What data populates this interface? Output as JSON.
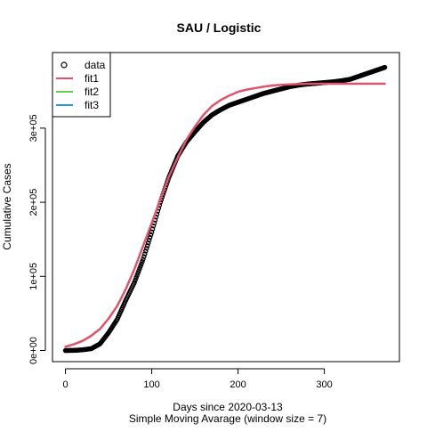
{
  "chart_data": {
    "type": "line",
    "title": "SAU / Logistic",
    "xlabel": "Days since 2020-03-13",
    "xlabel_sub": "Simple Moving Avarage (window size = 7)",
    "ylabel": "Cumulative Cases",
    "xlim": [
      -15,
      387
    ],
    "ylim": [
      -15000,
      402000
    ],
    "x_ticks": [
      0,
      100,
      200,
      300
    ],
    "x_tick_labels": [
      "0",
      "100",
      "200",
      "300"
    ],
    "y_ticks": [
      0,
      100000,
      200000,
      300000
    ],
    "y_tick_labels": [
      "0e+00",
      "1e+05",
      "2e+05",
      "3e+05"
    ],
    "legend_position": "top-left",
    "legend": [
      {
        "label": "data",
        "symbol": "circle",
        "color": "#000000"
      },
      {
        "label": "fit1",
        "symbol": "line",
        "color": "#DF536B"
      },
      {
        "label": "fit2",
        "symbol": "line",
        "color": "#61D04F"
      },
      {
        "label": "fit3",
        "symbol": "line",
        "color": "#2297E6"
      }
    ],
    "series": [
      {
        "name": "data",
        "style": "points",
        "color": "#000000",
        "x": [
          0,
          10,
          20,
          30,
          40,
          50,
          60,
          70,
          80,
          90,
          100,
          110,
          120,
          130,
          140,
          150,
          160,
          170,
          180,
          190,
          200,
          210,
          220,
          230,
          240,
          250,
          260,
          270,
          280,
          290,
          300,
          310,
          320,
          330,
          340,
          350,
          360,
          370
        ],
        "y": [
          0,
          200,
          1000,
          2500,
          9000,
          24000,
          42000,
          68000,
          92000,
          123000,
          160000,
          200000,
          234000,
          262000,
          281000,
          295000,
          308000,
          318000,
          325000,
          331000,
          335000,
          339000,
          343000,
          347000,
          350000,
          353000,
          356000,
          358000,
          359500,
          360500,
          361500,
          362500,
          364000,
          366000,
          370000,
          374000,
          378000,
          382000
        ]
      },
      {
        "name": "fit1",
        "style": "line",
        "color": "#DF536B",
        "x": [
          0,
          10,
          20,
          30,
          40,
          50,
          60,
          70,
          80,
          90,
          100,
          110,
          120,
          130,
          140,
          150,
          160,
          170,
          180,
          190,
          200,
          210,
          220,
          230,
          240,
          250,
          260,
          270,
          280,
          290,
          300,
          310,
          320,
          330,
          340,
          350,
          360,
          370
        ],
        "y": [
          5000,
          8500,
          13000,
          20000,
          29000,
          43000,
          60000,
          83000,
          110000,
          141000,
          172000,
          204000,
          235000,
          260000,
          284000,
          302000,
          318000,
          330000,
          338000,
          344000,
          349000,
          352000,
          354000,
          356000,
          357500,
          358500,
          359000,
          359500,
          359800,
          360000,
          360000,
          360000,
          360000,
          360000,
          360000,
          360000,
          360000,
          360000
        ]
      }
    ]
  }
}
